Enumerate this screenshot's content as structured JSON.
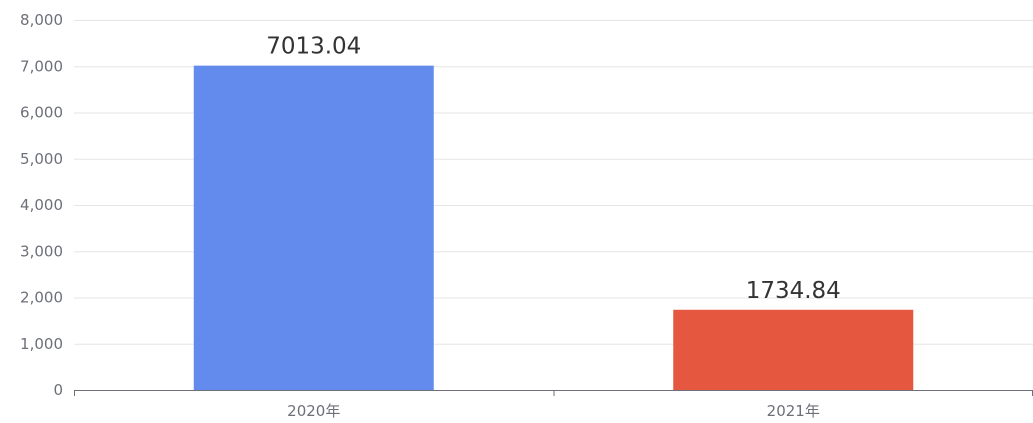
{
  "chart_data": {
    "type": "bar",
    "title": "",
    "xlabel": "",
    "ylabel": "",
    "categories": [
      "2020年",
      "2021年"
    ],
    "values": [
      7013.04,
      1734.84
    ],
    "value_labels": [
      "7013.04",
      "1734.84"
    ],
    "colors": [
      "#628bed",
      "#e5573f"
    ],
    "ylim": [
      0,
      8000
    ],
    "yticks": [
      0,
      1000,
      2000,
      3000,
      4000,
      5000,
      6000,
      7000,
      8000
    ],
    "ytick_labels": [
      "0",
      "1,000",
      "2,000",
      "3,000",
      "4,000",
      "5,000",
      "6,000",
      "7,000",
      "8,000"
    ],
    "grid": true,
    "legend": "none"
  }
}
